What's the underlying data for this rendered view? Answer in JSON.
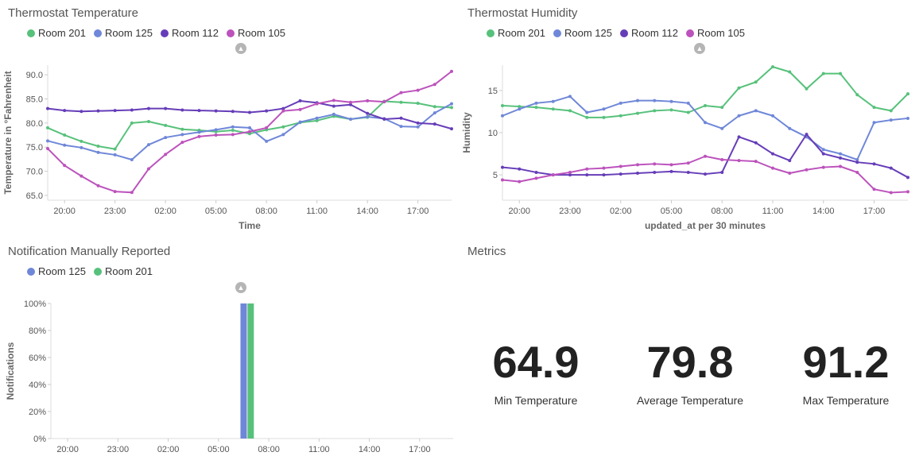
{
  "colors": {
    "green": "#57c17b",
    "blue": "#6f87d8",
    "purple": "#663db8",
    "magenta": "#bc52bc"
  },
  "temp_panel": {
    "title": "Thermostat Temperature",
    "legend": [
      {
        "label": "Room 201",
        "color": "#57c17b"
      },
      {
        "label": "Room 125",
        "color": "#6f87d8"
      },
      {
        "label": "Room 112",
        "color": "#663db8"
      },
      {
        "label": "Room 105",
        "color": "#bc52bc"
      }
    ],
    "collapse_icon": "chevron-up-icon"
  },
  "humidity_panel": {
    "title": "Thermostat Humidity",
    "legend": [
      {
        "label": "Room 201",
        "color": "#57c17b"
      },
      {
        "label": "Room 125",
        "color": "#6f87d8"
      },
      {
        "label": "Room 112",
        "color": "#663db8"
      },
      {
        "label": "Room 105",
        "color": "#bc52bc"
      }
    ],
    "collapse_icon": "chevron-up-icon"
  },
  "notif_panel": {
    "title": "Notification Manually Reported",
    "legend": [
      {
        "label": "Room 125",
        "color": "#6f87d8"
      },
      {
        "label": "Room 201",
        "color": "#57c17b"
      }
    ],
    "collapse_icon": "chevron-up-icon"
  },
  "metrics_panel": {
    "title": "Metrics",
    "items": [
      {
        "value": "64.9",
        "label": "Min Temperature"
      },
      {
        "value": "79.8",
        "label": "Average Temperature"
      },
      {
        "value": "91.2",
        "label": "Max Temperature"
      }
    ]
  },
  "chart_data": [
    {
      "type": "line",
      "xlabel": "Time",
      "ylabel": "Temperature in °Fahrenheit",
      "xticks": [
        "20:00",
        "23:00",
        "02:00",
        "05:00",
        "08:00",
        "11:00",
        "14:00",
        "17:00"
      ],
      "yticks": [
        "65.0",
        "70.0",
        "75.0",
        "80.0",
        "85.0",
        "90.0"
      ],
      "ylim": [
        64,
        92
      ],
      "x_hours": [
        0,
        1,
        2,
        3,
        4,
        5,
        6,
        7,
        8,
        9,
        10,
        11,
        12,
        13,
        14,
        15,
        16,
        17,
        18,
        19,
        20,
        21,
        22,
        23,
        24
      ],
      "series": [
        {
          "name": "Room 201",
          "color": "#57c17b",
          "values": [
            79.0,
            77.5,
            76.2,
            75.2,
            74.6,
            80.0,
            80.3,
            79.5,
            78.7,
            78.5,
            78.2,
            78.5,
            77.8,
            78.6,
            79.2,
            80.1,
            80.5,
            81.4,
            80.8,
            81.2,
            84.5,
            84.3,
            84.1,
            83.4,
            83.2
          ]
        },
        {
          "name": "Room 125",
          "color": "#6f87d8",
          "values": [
            76.3,
            75.4,
            74.9,
            73.9,
            73.4,
            72.4,
            75.5,
            77.0,
            77.6,
            78.1,
            78.6,
            79.2,
            79.0,
            76.2,
            77.6,
            80.2,
            81.0,
            81.8,
            80.8,
            81.3,
            80.9,
            79.3,
            79.2,
            82.1,
            84.0
          ]
        },
        {
          "name": "Room 112",
          "color": "#663db8",
          "values": [
            83.0,
            82.6,
            82.4,
            82.5,
            82.6,
            82.7,
            83.0,
            83.0,
            82.7,
            82.6,
            82.5,
            82.4,
            82.2,
            82.5,
            83.0,
            84.6,
            84.2,
            83.5,
            83.8,
            82.0,
            80.8,
            81.0,
            80.0,
            79.8,
            78.8
          ]
        },
        {
          "name": "Room 105",
          "color": "#bc52bc",
          "values": [
            74.7,
            71.2,
            69.0,
            67.0,
            65.8,
            65.6,
            70.5,
            73.5,
            76.0,
            77.2,
            77.5,
            77.6,
            78.2,
            79.0,
            82.5,
            82.8,
            84.0,
            84.7,
            84.3,
            84.6,
            84.4,
            86.3,
            86.8,
            88.0,
            90.7
          ]
        }
      ]
    },
    {
      "type": "line",
      "xlabel": "updated_at per 30 minutes",
      "ylabel": "Humidity",
      "xticks": [
        "20:00",
        "23:00",
        "02:00",
        "05:00",
        "08:00",
        "11:00",
        "14:00",
        "17:00"
      ],
      "yticks": [
        "5",
        "10",
        "15"
      ],
      "ylim": [
        2,
        18
      ],
      "x_hours": [
        0,
        1,
        2,
        3,
        4,
        5,
        6,
        7,
        8,
        9,
        10,
        11,
        12,
        13,
        14,
        15,
        16,
        17,
        18,
        19,
        20,
        21,
        22,
        23,
        24
      ],
      "series": [
        {
          "name": "Room 201",
          "color": "#57c17b",
          "values": [
            13.2,
            13.1,
            13.0,
            12.8,
            12.6,
            11.8,
            11.8,
            12.0,
            12.3,
            12.6,
            12.7,
            12.4,
            13.2,
            13.0,
            15.3,
            16.0,
            17.8,
            17.2,
            15.2,
            17.0,
            17.0,
            14.5,
            13.0,
            12.6,
            14.6
          ]
        },
        {
          "name": "Room 125",
          "color": "#6f87d8",
          "values": [
            12.0,
            12.8,
            13.5,
            13.7,
            14.3,
            12.4,
            12.8,
            13.5,
            13.8,
            13.8,
            13.7,
            13.5,
            11.2,
            10.5,
            12.0,
            12.6,
            12.0,
            10.5,
            9.5,
            8.0,
            7.5,
            6.8,
            11.2,
            11.5,
            11.7
          ]
        },
        {
          "name": "Room 112",
          "color": "#663db8",
          "values": [
            5.9,
            5.7,
            5.3,
            5.0,
            5.0,
            5.0,
            5.0,
            5.1,
            5.2,
            5.3,
            5.4,
            5.3,
            5.1,
            5.3,
            9.5,
            8.8,
            7.5,
            6.7,
            9.8,
            7.5,
            7.0,
            6.5,
            6.3,
            5.8,
            4.7
          ]
        },
        {
          "name": "Room 105",
          "color": "#bc52bc",
          "values": [
            4.4,
            4.2,
            4.6,
            5.0,
            5.3,
            5.7,
            5.8,
            6.0,
            6.2,
            6.3,
            6.2,
            6.4,
            7.2,
            6.8,
            6.7,
            6.6,
            5.8,
            5.2,
            5.6,
            5.9,
            6.0,
            5.3,
            3.3,
            2.9,
            3.0
          ]
        }
      ]
    },
    {
      "type": "bar",
      "ylabel": "Notifications",
      "xticks": [
        "20:00",
        "23:00",
        "02:00",
        "05:00",
        "08:00",
        "11:00",
        "14:00",
        "17:00"
      ],
      "yticks": [
        "0%",
        "20%",
        "40%",
        "60%",
        "80%",
        "100%"
      ],
      "ylim": [
        0,
        100
      ],
      "bars": [
        {
          "series": "Room 125",
          "x_hour": 11.5,
          "value": 100,
          "color": "#6f87d8"
        },
        {
          "series": "Room 201",
          "x_hour": 11.92,
          "value": 100,
          "color": "#57c17b"
        }
      ]
    }
  ]
}
